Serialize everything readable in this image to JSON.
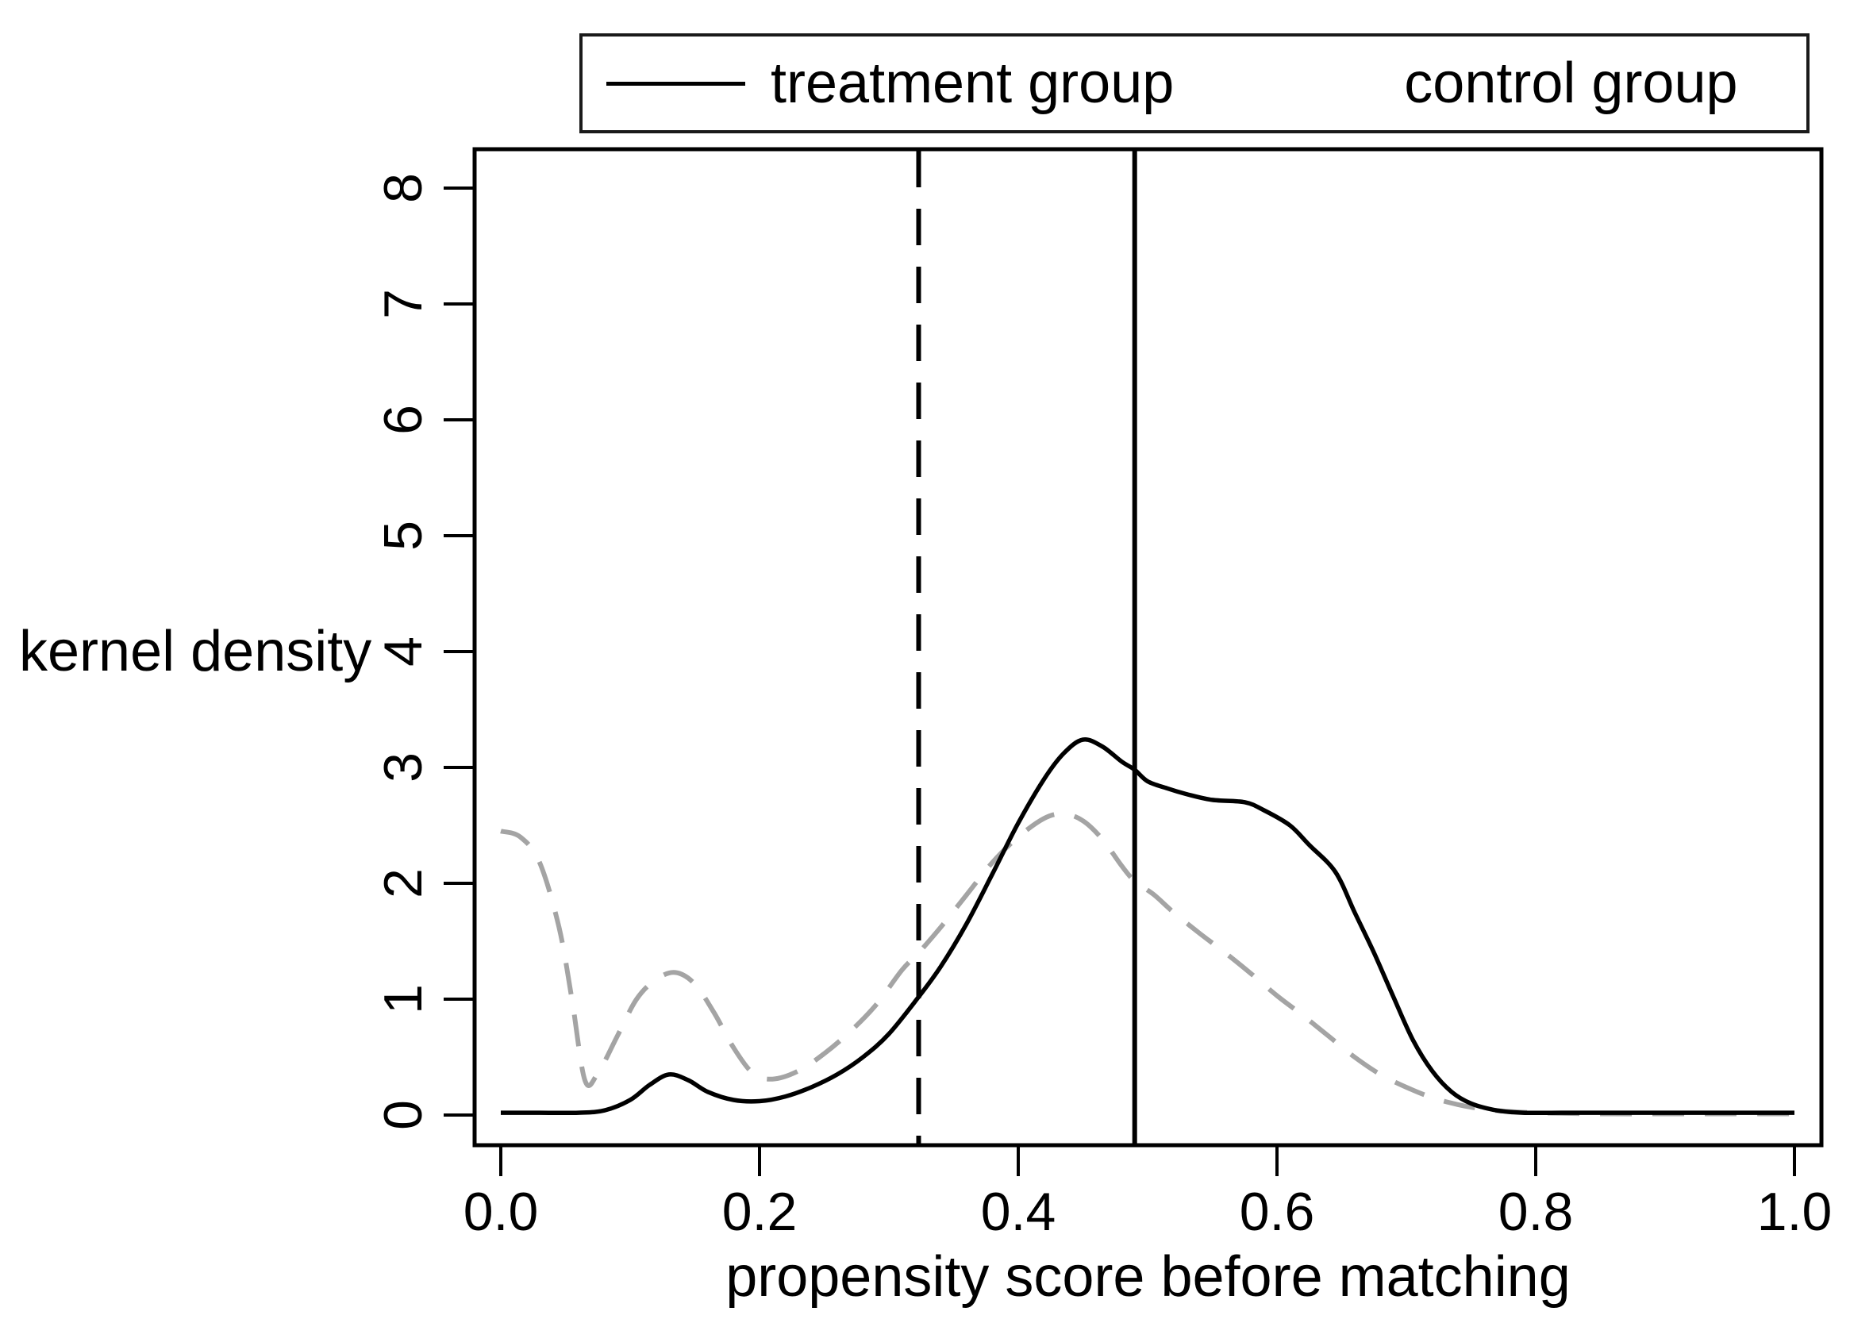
{
  "figure": {
    "background": "#ffffff",
    "axis_color": "#000000",
    "control_color": "#a4a4a4"
  },
  "chart_data": {
    "type": "line",
    "title": "",
    "xlabel": "propensity score before matching",
    "ylabel": "kernel density",
    "xlim": [
      0.0,
      1.0
    ],
    "ylim": [
      0,
      8
    ],
    "grid": false,
    "legend_position": "top",
    "x_ticks": [
      "0.0",
      "0.2",
      "0.4",
      "0.6",
      "0.8",
      "1.0"
    ],
    "x_tick_values": [
      0.0,
      0.2,
      0.4,
      0.6,
      0.8,
      1.0
    ],
    "y_ticks": [
      "0",
      "1",
      "2",
      "3",
      "4",
      "5",
      "6",
      "7",
      "8"
    ],
    "y_tick_values": [
      0,
      1,
      2,
      3,
      4,
      5,
      6,
      7,
      8
    ],
    "vlines": [
      {
        "x": 0.323,
        "style": "dashed",
        "color": "#000000"
      },
      {
        "x": 0.49,
        "style": "solid",
        "color": "#000000"
      }
    ],
    "series": [
      {
        "name": "treatment group",
        "style": "solid",
        "color": "#000000",
        "points": [
          [
            0.0,
            0.02
          ],
          [
            0.03,
            0.02
          ],
          [
            0.06,
            0.02
          ],
          [
            0.08,
            0.04
          ],
          [
            0.1,
            0.13
          ],
          [
            0.115,
            0.26
          ],
          [
            0.13,
            0.35
          ],
          [
            0.145,
            0.3
          ],
          [
            0.16,
            0.2
          ],
          [
            0.18,
            0.13
          ],
          [
            0.2,
            0.12
          ],
          [
            0.22,
            0.16
          ],
          [
            0.24,
            0.24
          ],
          [
            0.26,
            0.35
          ],
          [
            0.28,
            0.5
          ],
          [
            0.3,
            0.7
          ],
          [
            0.323,
            1.02
          ],
          [
            0.34,
            1.28
          ],
          [
            0.36,
            1.65
          ],
          [
            0.38,
            2.08
          ],
          [
            0.4,
            2.52
          ],
          [
            0.42,
            2.9
          ],
          [
            0.435,
            3.12
          ],
          [
            0.45,
            3.24
          ],
          [
            0.465,
            3.18
          ],
          [
            0.48,
            3.05
          ],
          [
            0.49,
            2.98
          ],
          [
            0.5,
            2.88
          ],
          [
            0.515,
            2.82
          ],
          [
            0.53,
            2.77
          ],
          [
            0.55,
            2.72
          ],
          [
            0.575,
            2.7
          ],
          [
            0.59,
            2.63
          ],
          [
            0.61,
            2.5
          ],
          [
            0.625,
            2.33
          ],
          [
            0.645,
            2.1
          ],
          [
            0.66,
            1.75
          ],
          [
            0.675,
            1.4
          ],
          [
            0.69,
            1.02
          ],
          [
            0.705,
            0.65
          ],
          [
            0.72,
            0.38
          ],
          [
            0.735,
            0.2
          ],
          [
            0.75,
            0.1
          ],
          [
            0.77,
            0.04
          ],
          [
            0.79,
            0.02
          ],
          [
            0.82,
            0.02
          ],
          [
            0.86,
            0.02
          ],
          [
            0.9,
            0.02
          ],
          [
            0.95,
            0.02
          ],
          [
            1.0,
            0.02
          ]
        ]
      },
      {
        "name": "control group",
        "style": "dashed",
        "color": "#a4a4a4",
        "points": [
          [
            0.0,
            2.45
          ],
          [
            0.015,
            2.4
          ],
          [
            0.03,
            2.18
          ],
          [
            0.045,
            1.62
          ],
          [
            0.055,
            1.0
          ],
          [
            0.065,
            0.3
          ],
          [
            0.075,
            0.36
          ],
          [
            0.09,
            0.68
          ],
          [
            0.105,
            1.0
          ],
          [
            0.12,
            1.17
          ],
          [
            0.135,
            1.23
          ],
          [
            0.15,
            1.13
          ],
          [
            0.165,
            0.88
          ],
          [
            0.18,
            0.58
          ],
          [
            0.195,
            0.36
          ],
          [
            0.21,
            0.31
          ],
          [
            0.23,
            0.38
          ],
          [
            0.25,
            0.53
          ],
          [
            0.27,
            0.72
          ],
          [
            0.29,
            0.95
          ],
          [
            0.31,
            1.25
          ],
          [
            0.323,
            1.4
          ],
          [
            0.34,
            1.62
          ],
          [
            0.36,
            1.9
          ],
          [
            0.38,
            2.18
          ],
          [
            0.4,
            2.4
          ],
          [
            0.42,
            2.56
          ],
          [
            0.435,
            2.6
          ],
          [
            0.45,
            2.54
          ],
          [
            0.465,
            2.38
          ],
          [
            0.48,
            2.15
          ],
          [
            0.49,
            2.02
          ],
          [
            0.505,
            1.9
          ],
          [
            0.52,
            1.75
          ],
          [
            0.54,
            1.57
          ],
          [
            0.56,
            1.4
          ],
          [
            0.58,
            1.22
          ],
          [
            0.6,
            1.03
          ],
          [
            0.62,
            0.86
          ],
          [
            0.64,
            0.68
          ],
          [
            0.66,
            0.5
          ],
          [
            0.68,
            0.35
          ],
          [
            0.7,
            0.24
          ],
          [
            0.72,
            0.15
          ],
          [
            0.74,
            0.09
          ],
          [
            0.76,
            0.05
          ],
          [
            0.78,
            0.03
          ],
          [
            0.8,
            0.02
          ],
          [
            0.85,
            0.01
          ],
          [
            0.9,
            0.01
          ],
          [
            0.95,
            0.01
          ],
          [
            1.0,
            0.01
          ]
        ]
      }
    ]
  }
}
